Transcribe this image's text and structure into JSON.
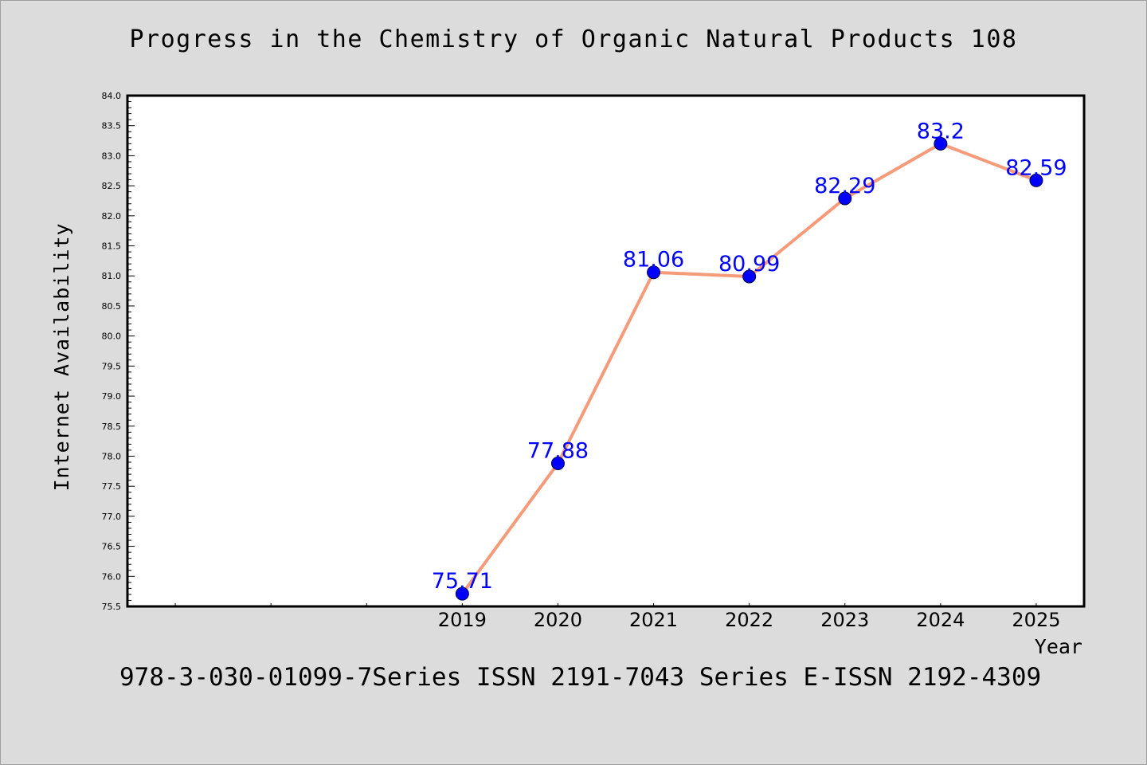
{
  "footer": "978-3-030-01099-7Series ISSN 2191-7043 Series E-ISSN 2192-4309",
  "colors": {
    "background": "#dcdcdc",
    "plot_background": "#ffffff",
    "line": "#f59b7a",
    "marker": "#0000ff",
    "data_label": "#0000ff"
  },
  "chart_data": {
    "type": "line",
    "title": "Progress in the Chemistry of Organic Natural Products 108",
    "xlabel": "Year",
    "ylabel": "Internet Availability",
    "x": [
      2019,
      2020,
      2021,
      2022,
      2023,
      2024,
      2025
    ],
    "x_tick_labels": [
      "2019",
      "2020",
      "2021",
      "2022",
      "2023",
      "2024",
      "2025"
    ],
    "x_range": [
      2015.5,
      2025.5
    ],
    "series": [
      {
        "values": [
          75.71,
          77.88,
          81.06,
          80.99,
          82.29,
          83.2,
          82.59
        ],
        "labels": [
          "75.71",
          "77.88",
          "81.06",
          "80.99",
          "82.29",
          "83.2",
          "82.59"
        ]
      }
    ],
    "ylim": [
      75.5,
      84.0
    ],
    "y_major_ticks": [
      "75.5",
      "76.0",
      "76.5",
      "77.0",
      "77.5",
      "78.0",
      "78.5",
      "79.0",
      "79.5",
      "80.0",
      "80.5",
      "81.0",
      "81.5",
      "82.0",
      "82.5",
      "83.0",
      "83.5",
      "84.0"
    ],
    "grid": false,
    "markers": "filled circles",
    "data_labels": true
  }
}
